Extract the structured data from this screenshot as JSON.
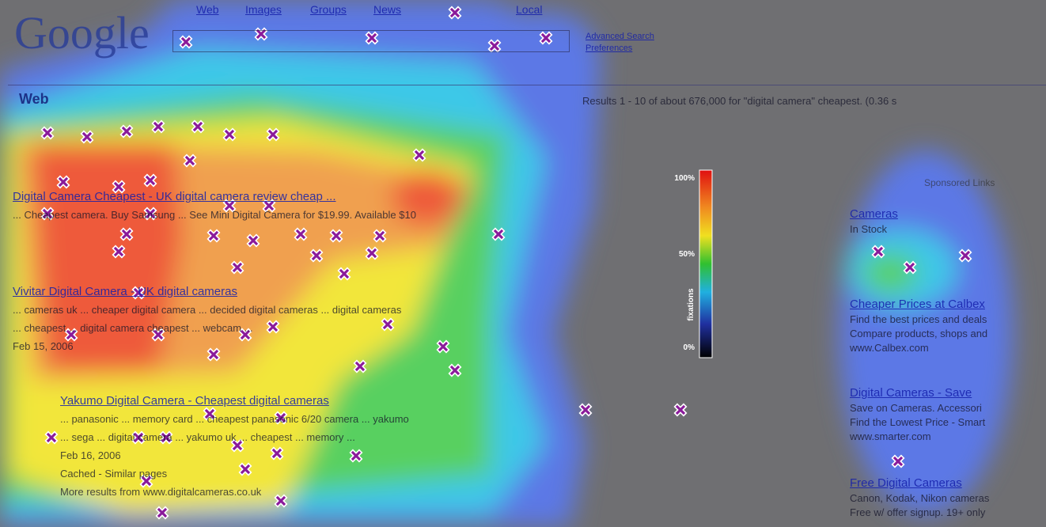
{
  "logo": "Google",
  "nav": {
    "tabs": [
      "Web",
      "Images",
      "Groups",
      "News",
      "Local"
    ],
    "links": [
      "Advanced Search",
      "Preferences"
    ]
  },
  "results_bar": {
    "section": "Web",
    "summary": "Results 1 - 10 of about 676,000 for \"digital camera\" cheapest. (0.36 s"
  },
  "results": [
    {
      "title": "Digital Camera Cheapest - UK digital camera review cheap ...",
      "lines": [
        "... Cheapest camera. Buy Samsung ... See Mini Digital Camera for $19.99. Available $10"
      ]
    },
    {
      "title": "Vivitar Digital Camera - UK digital cameras",
      "lines": [
        "... cameras uk ... cheaper digital camera ... decided digital cameras ... digital cameras",
        "... cheapest ... digital camera cheapest ... webcam ...",
        "Feb 15, 2006"
      ]
    },
    {
      "title": "Yakumo Digital Camera - Cheapest digital cameras",
      "lines": [
        "... panasonic ... memory card ... cheapest panasonic 6/20 camera ... yakumo",
        "... sega ... digital camera ... yakumo uk ... cheapest ... memory ...",
        "Feb 16, 2006",
        "Cached - Similar pages",
        "More results from www.digitalcameras.co.uk"
      ]
    }
  ],
  "sponsored": {
    "label": "Sponsored Links",
    "ads": [
      {
        "title": "Cameras",
        "lines": [
          "In Stock"
        ]
      },
      {
        "title": "Cheaper Prices at Calbex",
        "lines": [
          "Find the best prices and deals",
          "Compare products, shops and",
          "www.Calbex.com"
        ]
      },
      {
        "title": "Digital Cameras - Save",
        "lines": [
          "Save on Cameras. Accessori",
          "Find the Lowest Price - Smart",
          "www.smarter.com"
        ]
      },
      {
        "title": "Free Digital Cameras",
        "lines": [
          "Canon, Kodak, Nikon cameras",
          "Free w/ offer signup. 19+ only"
        ]
      }
    ]
  },
  "legend": {
    "max": "100%",
    "mid": "50%",
    "min": "0%",
    "title": "fixations"
  }
}
